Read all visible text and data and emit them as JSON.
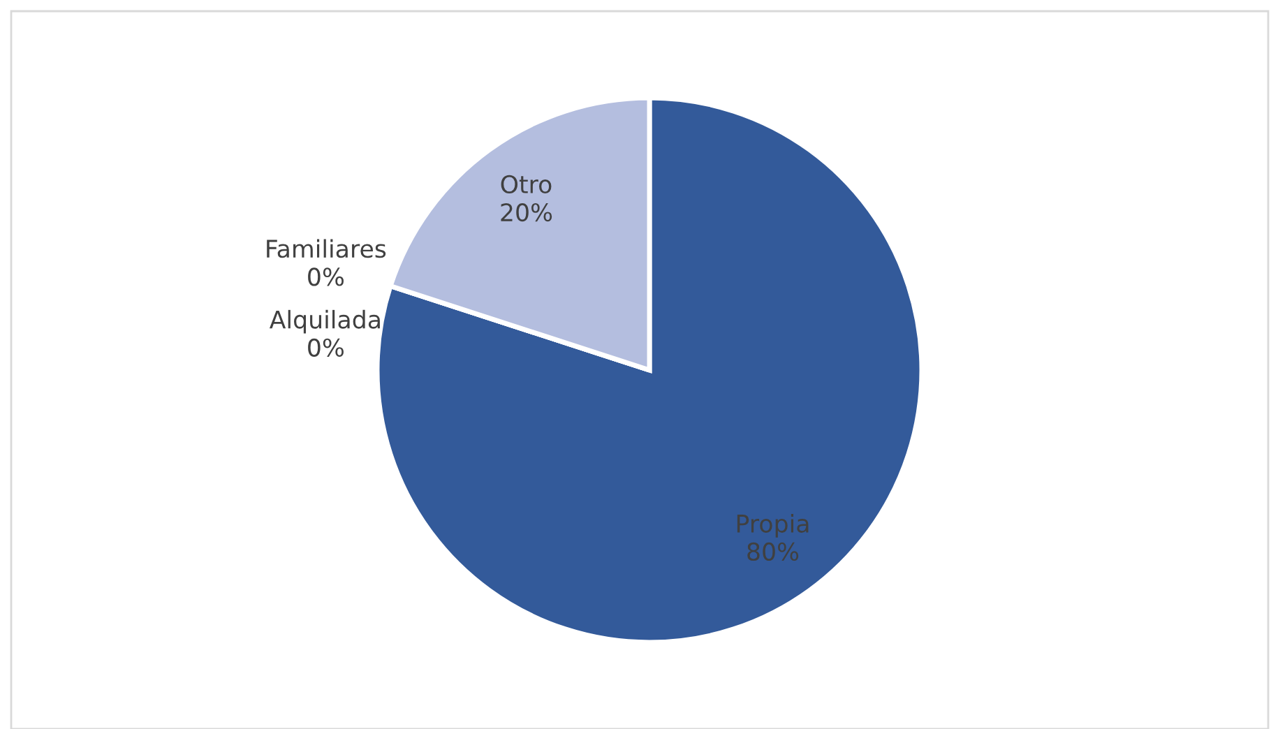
{
  "chart_data": {
    "type": "pie",
    "categories": [
      "Propia",
      "Alquilada",
      "Familiares",
      "Otro"
    ],
    "values": [
      80,
      0,
      0,
      20
    ],
    "colors": [
      "#335a9a",
      "#6e86c2",
      "#8a9dd0",
      "#b4bedf"
    ],
    "value_labels": [
      "80%",
      "0%",
      "0%",
      "20%"
    ],
    "legend": false
  }
}
